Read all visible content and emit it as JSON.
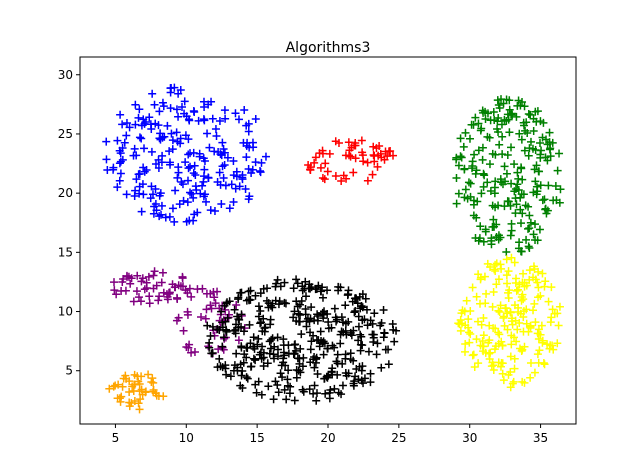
{
  "chart_data": {
    "type": "scatter",
    "title": "Algorithms3",
    "xlabel": "",
    "ylabel": "",
    "xlim": [
      2.5,
      37.5
    ],
    "ylim": [
      0.5,
      31.5
    ],
    "xticks": [
      5,
      10,
      15,
      20,
      25,
      30,
      35
    ],
    "yticks": [
      5,
      10,
      15,
      20,
      25,
      30
    ],
    "grid": false,
    "marker": "+",
    "series": [
      {
        "color": "#0000ff",
        "shape": "blob",
        "center": [
          10.0,
          23.2
        ],
        "radius": [
          5.8,
          5.8
        ],
        "count": 230,
        "seed": 11
      },
      {
        "color": "#ff0000",
        "shape": "blob",
        "center": [
          21.6,
          22.7
        ],
        "radius": [
          3.2,
          1.9
        ],
        "count": 55,
        "seed": 23
      },
      {
        "color": "#008000",
        "shape": "blob",
        "center": [
          32.7,
          21.4
        ],
        "radius": [
          3.9,
          6.6
        ],
        "count": 230,
        "seed": 37
      },
      {
        "color": "#800080",
        "shape": "blob",
        "center": [
          7.8,
          12.0
        ],
        "radius": [
          3.1,
          1.4
        ],
        "count": 55,
        "seed": 41
      },
      {
        "color": "#800080",
        "shape": "blob",
        "center": [
          11.8,
          8.9
        ],
        "radius": [
          2.5,
          3.2
        ],
        "count": 45,
        "seed": 43
      },
      {
        "color": "#000000",
        "shape": "blob",
        "center": [
          18.1,
          7.6
        ],
        "radius": [
          6.8,
          5.3
        ],
        "count": 380,
        "seed": 53
      },
      {
        "color": "#ffff00",
        "shape": "blob",
        "center": [
          32.8,
          9.1
        ],
        "radius": [
          3.7,
          5.5
        ],
        "count": 200,
        "seed": 67
      },
      {
        "color": "#ffa500",
        "shape": "blob",
        "center": [
          6.5,
          3.3
        ],
        "radius": [
          2.0,
          1.6
        ],
        "count": 45,
        "seed": 71
      }
    ]
  }
}
